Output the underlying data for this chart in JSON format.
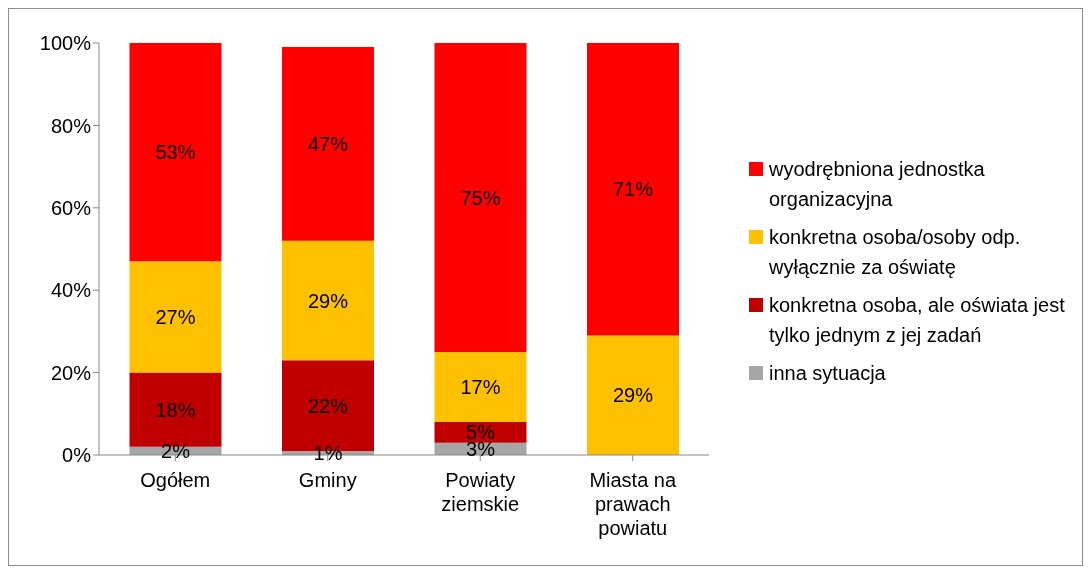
{
  "chart_data": {
    "type": "bar",
    "stacked": true,
    "categories": [
      "Ogółem",
      "Gminy",
      "Powiaty ziemskie",
      "Miasta na prawach powiatu"
    ],
    "series": [
      {
        "name": "inna sytuacja",
        "color": "#a6a6a6",
        "values": [
          2,
          1,
          3,
          null
        ],
        "value_labels": [
          "2%",
          "1%",
          "3%",
          null
        ]
      },
      {
        "name": "konkretna osoba, ale oświata jest tylko jednym z jej zadań",
        "color": "#c00000",
        "values": [
          18,
          22,
          5,
          null
        ],
        "value_labels": [
          "18%",
          "22%",
          "5%",
          null
        ]
      },
      {
        "name": "konkretna osoba/osoby odp. wyłącznie za oświatę",
        "color": "#ffc000",
        "values": [
          27,
          29,
          17,
          29
        ],
        "value_labels": [
          "27%",
          "29%",
          "17%",
          "29%"
        ]
      },
      {
        "name": "wyodrębniona jednostka organizacyjna",
        "color": "#ff0000",
        "values": [
          53,
          47,
          75,
          71
        ],
        "value_labels": [
          "53%",
          "47%",
          "75%",
          "71%"
        ]
      }
    ],
    "ylim": [
      0,
      100
    ],
    "yticks": [
      {
        "value": 0,
        "label": "0%"
      },
      {
        "value": 20,
        "label": "20%"
      },
      {
        "value": 40,
        "label": "40%"
      },
      {
        "value": 60,
        "label": "60%"
      },
      {
        "value": 80,
        "label": "80%"
      },
      {
        "value": 100,
        "label": "100%"
      }
    ],
    "grid": false,
    "legend": "right"
  }
}
